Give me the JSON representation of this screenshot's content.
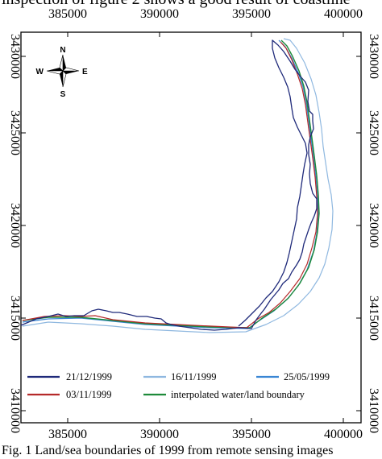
{
  "header_text": "inspection of figure 2 shows a good result of coastline",
  "caption_text": "Fig. 1 Land/sea boundaries of 1999 from remote sensing images",
  "compass": {
    "icon": "north-arrow-icon",
    "n": "N",
    "e": "E",
    "s": "S",
    "w": "W"
  },
  "x_ticks": [
    "385000",
    "390000",
    "395000",
    "400000"
  ],
  "y_ticks": [
    "3410000",
    "3415000",
    "3420000",
    "3425000",
    "3430000"
  ],
  "legend": [
    {
      "label": "21/12/1999",
      "color": "#1f2a7a"
    },
    {
      "label": "16/11/1999",
      "color": "#8fb8e0"
    },
    {
      "label": "25/05/1999",
      "color": "#3a86d4"
    },
    {
      "label": "03/11/1999",
      "color": "#b52a2a"
    },
    {
      "label": "interpolated water/land boundary",
      "color": "#1e8a3a"
    }
  ]
}
